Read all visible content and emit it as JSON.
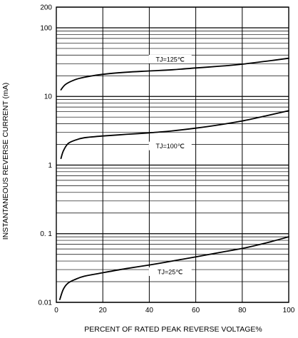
{
  "chart_data": {
    "type": "line",
    "xlabel": "PERCENT OF RATED PEAK REVERSE VOLTAGE%",
    "ylabel": "INSTANTANEOUS REVERSE CURRENT (mA)",
    "xlim": [
      0,
      100
    ],
    "ylim": [
      0.01,
      200
    ],
    "y_scale": "log",
    "grid": true,
    "x_ticks": [
      "0",
      "20",
      "40",
      "60",
      "80",
      "100"
    ],
    "y_ticks": [
      {
        "value": 0.01,
        "label": "0.01"
      },
      {
        "value": 0.1,
        "label": "0. 1"
      },
      {
        "value": 1,
        "label": "1"
      },
      {
        "value": 10,
        "label": "10"
      },
      {
        "value": 100,
        "label": "100"
      },
      {
        "value": 200,
        "label": "200"
      }
    ],
    "series": [
      {
        "name": "TJ=125℃",
        "label_at": {
          "x": 49,
          "y": 35
        },
        "x": [
          2,
          4,
          8,
          12,
          20,
          30,
          40,
          50,
          60,
          70,
          80,
          90,
          100
        ],
        "y": [
          12.5,
          15,
          17.5,
          19,
          21,
          22.5,
          23.5,
          24.5,
          26,
          27.5,
          29.5,
          32.5,
          36
        ]
      },
      {
        "name": "TJ=100℃",
        "label_at": {
          "x": 49,
          "y": 1.9
        },
        "x": [
          2,
          3,
          5,
          8,
          12,
          20,
          30,
          40,
          50,
          60,
          70,
          80,
          90,
          100
        ],
        "y": [
          1.25,
          1.6,
          2.05,
          2.3,
          2.5,
          2.65,
          2.8,
          2.95,
          3.15,
          3.45,
          3.85,
          4.4,
          5.2,
          6.2
        ]
      },
      {
        "name": "TJ=25℃",
        "label_at": {
          "x": 49,
          "y": 0.028
        },
        "x": [
          1.5,
          3,
          5,
          8,
          12,
          20,
          30,
          40,
          50,
          60,
          70,
          80,
          90,
          100
        ],
        "y": [
          0.011,
          0.0155,
          0.019,
          0.0215,
          0.024,
          0.027,
          0.031,
          0.035,
          0.04,
          0.046,
          0.053,
          0.061,
          0.073,
          0.09
        ]
      }
    ]
  }
}
